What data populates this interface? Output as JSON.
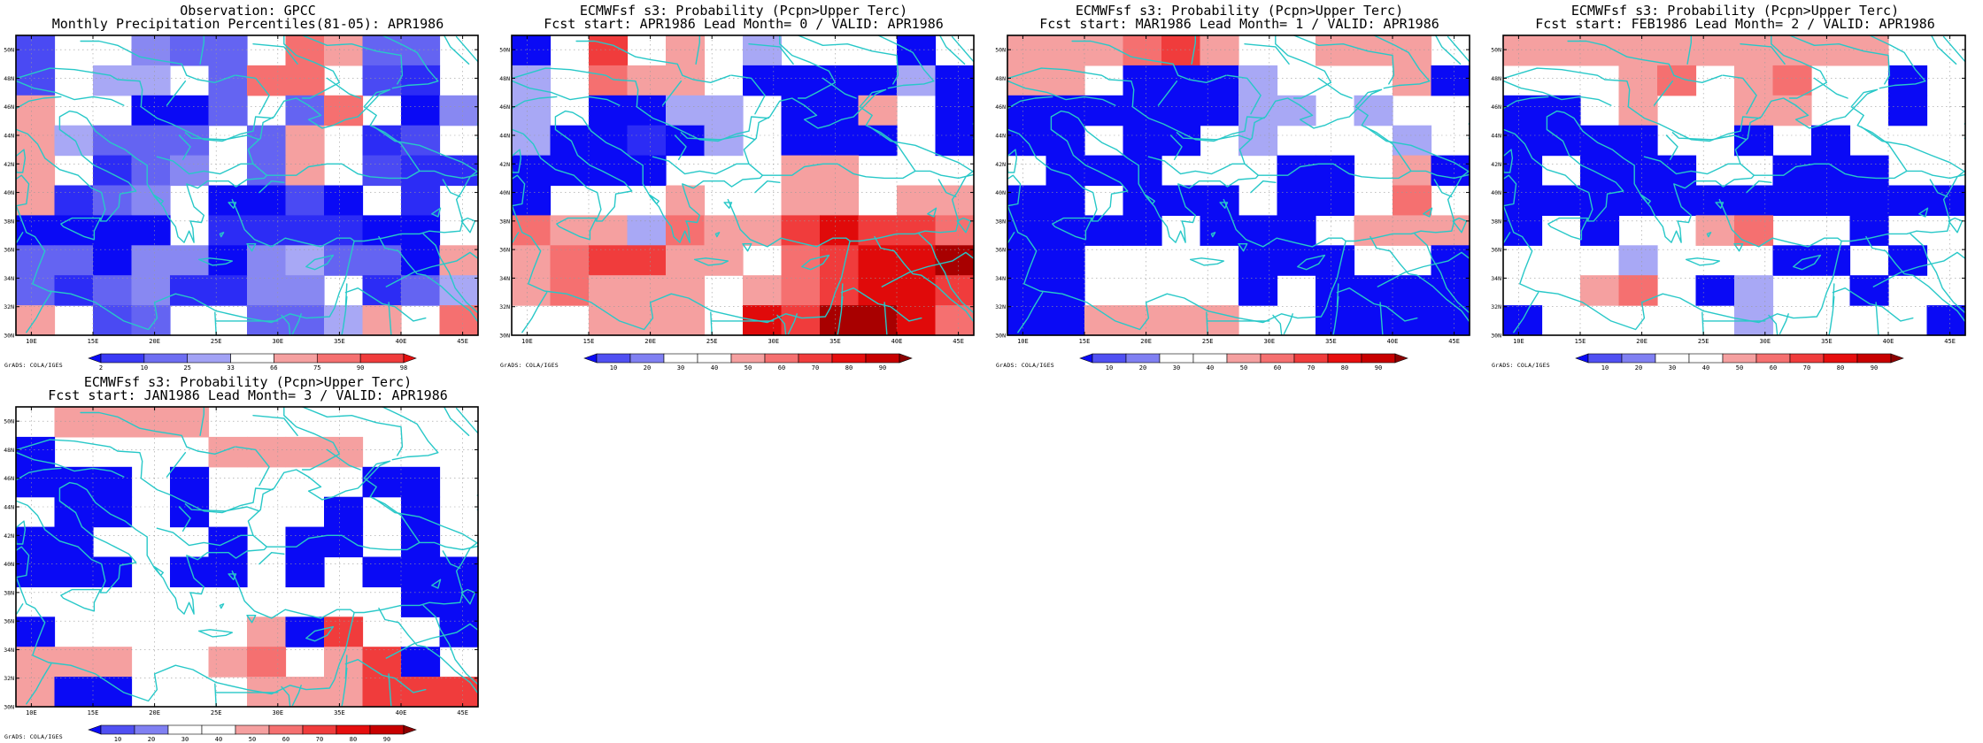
{
  "panels": [
    {
      "title_line1": "Observation: GPCC",
      "title_line2": "Monthly Precipitation Percentiles(81-05): APR1986",
      "colorbar_labels": [
        "2",
        "10",
        "25",
        "33",
        "66",
        "75",
        "90",
        "98"
      ],
      "colorbar_colors": [
        "#0a0af5",
        "#3a3af5",
        "#6e6ef2",
        "#a2a2f5",
        "#ffffff",
        "#f5a0a0",
        "#f57070",
        "#f03c3c",
        "#e60e0e"
      ],
      "grid": [
        "c..edd.hgdd.",
        "c.ff.dhh.cb.",
        "g..aad.dh.ae",
        "gfddd.dg.bc.",
        "g.bde.dg.cbb",
        "gbde.aaca.b.",
        "aaaa.bbbbaa.",
        "ddaeeaefddag",
        "dbdebbee.bdf",
        "g.cd..ddfg.h"
      ],
      "grads_label": "GrADS: COLA/IGES"
    },
    {
      "title_line1": "ECMWFsf s3: Probability (Pcpn>Upper Terc)",
      "title_line2": "Fcst start: APR1986  Lead Month= 0 / VALID: APR1986",
      "colorbar_labels": [
        "10",
        "20",
        "30",
        "40",
        "50",
        "60",
        "70",
        "80",
        "90"
      ],
      "colorbar_colors": [
        "#0a0af5",
        "#5050f2",
        "#8080f2",
        "#ffffff",
        "#ffffff",
        "#f5a0a0",
        "#f57070",
        "#f03c3c",
        "#e60e0e",
        "#c80000",
        "#8c0000"
      ],
      "grid": [
        "a.j.g.f...a.",
        "f.hgg.aaaafa",
        "f.aaff.aag.a",
        "faabaf.aaa.a",
        "aaaa...gg...",
        "a...g..gg.gg",
        "hggfhggjkjjh",
        "ghjjgg.hjkkl",
        "ghggg.ghjkkj",
        "..ggg.kjllkh"
      ],
      "grads_label": "GrADS: COLA/IGES"
    },
    {
      "title_line1": "ECMWFsf s3: Probability (Pcpn>Upper Terc)",
      "title_line2": "Fcst start: MAR1986  Lead Month= 1 / VALID: APR1986",
      "colorbar_labels": [
        "10",
        "20",
        "30",
        "40",
        "50",
        "60",
        "70",
        "80",
        "90"
      ],
      "colorbar_colors": [
        "#0a0af5",
        "#5050f2",
        "#8080f2",
        "#ffffff",
        "#ffffff",
        "#f5a0a0",
        "#f57070",
        "#f03c3c",
        "#e60e0e",
        "#c80000",
        "#8c0000"
      ],
      "grid": [
        "ggghjg..ggg.",
        "gg.aaaf...ga",
        "aaaaaaff.f..",
        "aa.aa.f...f.",
        ".aaa...aa.ga",
        "aa.aaa.aa.h.",
        "aaaa.aaa.ggg",
        "aa....aaa..a",
        "aa....a.aaaa",
        "aagggg..aaaa"
      ],
      "grads_label": "GrADS: COLA/IGES"
    },
    {
      "title_line1": "ECMWFsf s3: Probability (Pcpn>Upper Terc)",
      "title_line2": "Fcst start: FEB1986  Lead Month= 2 / VALID: APR1986",
      "colorbar_labels": [
        "10",
        "20",
        "30",
        "40",
        "50",
        "60",
        "70",
        "80",
        "90"
      ],
      "colorbar_colors": [
        "#0a0af5",
        "#5050f2",
        "#8080f2",
        "#ffffff",
        "#ffffff",
        "#f5a0a0",
        "#f57070",
        "#f03c3c",
        "#e60e0e",
        "#c80000",
        "#8c0000"
      ],
      "grid": [
        "gggggggggg..",
        "...gh.gh..a.",
        "aa.g..gg..a.",
        "aaaa..a.a...",
        "a.aaa..aaa..",
        "aaaaaaaaaaaa",
        "a.a..gh..a..",
        "...f...aa.a.",
        "..gh.af..a..",
        "a.....f....a"
      ],
      "grads_label": "GrADS: COLA/IGES"
    },
    {
      "title_line1": "ECMWFsf s3: Probability (Pcpn>Upper Terc)",
      "title_line2": "Fcst start: JAN1986  Lead Month= 3 / VALID: APR1986",
      "colorbar_labels": [
        "10",
        "20",
        "30",
        "40",
        "50",
        "60",
        "70",
        "80",
        "90"
      ],
      "colorbar_colors": [
        "#0a0af5",
        "#5050f2",
        "#8080f2",
        "#ffffff",
        "#ffffff",
        "#f5a0a0",
        "#f57070",
        "#f03c3c",
        "#e60e0e",
        "#c80000",
        "#8c0000"
      ],
      "grid": [
        ".gggg.......",
        "a....gggg...",
        "aaa.a....aa.",
        ".aa.a...a.a.",
        "aa...a.aa.a.",
        "aaa.aa.a.aaa",
        "..........aa",
        "a.....gaj..a",
        "ggg..gh.gja.",
        "gaa...gggjjj"
      ],
      "grads_label": "GrADS: COLA/IGES"
    }
  ],
  "cell_colors": {
    "a": "#0a0af5",
    "b": "#2c2cf5",
    "c": "#4a4af3",
    "d": "#6464f2",
    "e": "#8888f2",
    "f": "#a8a8f5",
    "g": "#f5a0a0",
    "h": "#f57070",
    "j": "#f03c3c",
    "k": "#e00a0a",
    "l": "#a80000"
  },
  "lon_labels": [
    "10E",
    "15E",
    "20E",
    "25E",
    "30E",
    "35E",
    "40E",
    "45E"
  ],
  "lat_labels": [
    "30N",
    "32N",
    "34N",
    "36N",
    "38N",
    "40N",
    "42N",
    "44N",
    "46N",
    "48N",
    "50N"
  ],
  "coastline_color": "#28c8c8"
}
